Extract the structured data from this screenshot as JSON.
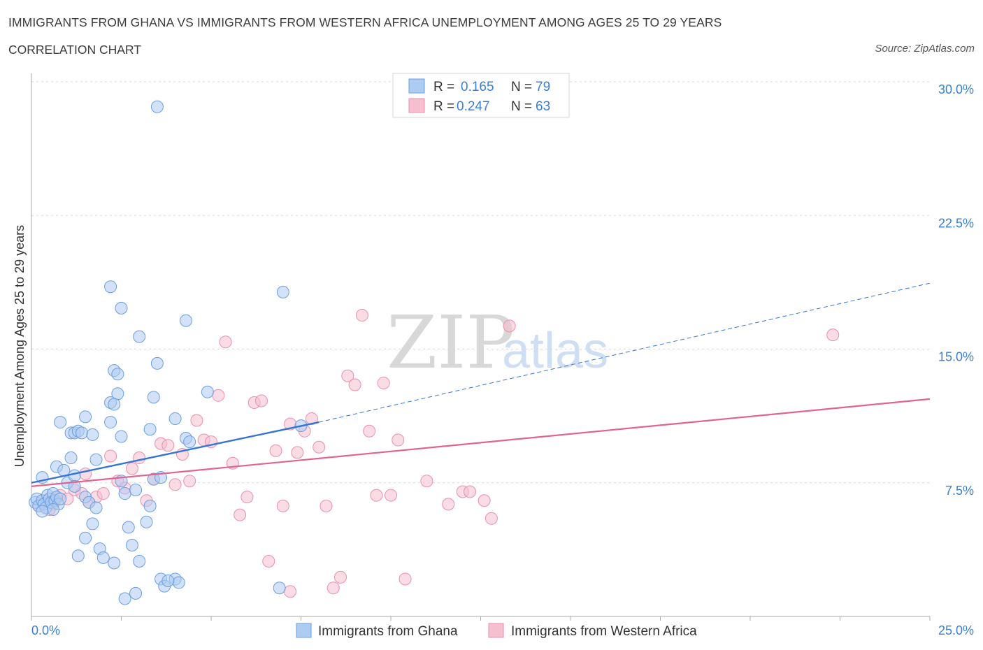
{
  "title": "IMMIGRANTS FROM GHANA VS IMMIGRANTS FROM WESTERN AFRICA UNEMPLOYMENT AMONG AGES 25 TO 29 YEARS",
  "subtitle": "CORRELATION CHART",
  "source": "Source: ZipAtlas.com",
  "watermark": {
    "zip": "ZIP",
    "atlas": "atlas"
  },
  "legend": {
    "rows": [
      {
        "r_label": "R =",
        "r_value": "0.165",
        "n_label": "N =",
        "n_value": "79"
      },
      {
        "r_label": "R =",
        "r_value": "0.247",
        "n_label": "N =",
        "n_value": "63"
      }
    ]
  },
  "bottom_legend": [
    "Immigrants from Ghana",
    "Immigrants from Western Africa"
  ],
  "colors": {
    "ghana_fill": "#aecbf2",
    "ghana_stroke": "#6a9fe0",
    "ghana_line": "#3474d4",
    "wa_fill": "#f6bfd0",
    "wa_stroke": "#ea8fae",
    "wa_line": "#e0648f",
    "tick_text": "#3b7fd4",
    "grid": "#d9d9d9"
  },
  "chart_data": {
    "type": "scatter",
    "title": "IMMIGRANTS FROM GHANA VS IMMIGRANTS FROM WESTERN AFRICA UNEMPLOYMENT AMONG AGES 25 TO 29 YEARS",
    "xlabel": "",
    "ylabel": "Unemployment Among Ages 25 to 29 years",
    "xlim": [
      0,
      25
    ],
    "ylim": [
      0,
      30
    ],
    "x_tick_labels": [
      "0.0%",
      "25.0%"
    ],
    "y_ticks": [
      7.5,
      15.0,
      22.5,
      30.0
    ],
    "y_tick_labels": [
      "7.5%",
      "15.0%",
      "22.5%",
      "30.0%"
    ],
    "grid": "horizontal dashed",
    "series": [
      {
        "name": "Immigrants from Ghana",
        "R": 0.165,
        "N": 79,
        "trend": {
          "x0": 0.0,
          "y0": 7.5,
          "x1": 8.0,
          "y1": 10.9,
          "dash_to_x": 25.0,
          "dash_to_y": 18.7
        },
        "points": [
          [
            0.1,
            6.4
          ],
          [
            0.15,
            6.6
          ],
          [
            0.2,
            6.2
          ],
          [
            0.3,
            6.5
          ],
          [
            0.35,
            6.3
          ],
          [
            0.4,
            6.1
          ],
          [
            0.45,
            6.8
          ],
          [
            0.5,
            6.6
          ],
          [
            0.55,
            6.4
          ],
          [
            0.6,
            6.9
          ],
          [
            0.65,
            6.5
          ],
          [
            0.7,
            6.7
          ],
          [
            0.75,
            6.3
          ],
          [
            0.8,
            6.6
          ],
          [
            0.3,
            7.8
          ],
          [
            0.7,
            8.4
          ],
          [
            0.9,
            8.2
          ],
          [
            1.0,
            7.5
          ],
          [
            1.1,
            8.9
          ],
          [
            1.2,
            7.9
          ],
          [
            0.8,
            10.9
          ],
          [
            1.1,
            10.3
          ],
          [
            1.2,
            10.3
          ],
          [
            1.3,
            10.4
          ],
          [
            1.4,
            10.3
          ],
          [
            1.5,
            11.2
          ],
          [
            1.7,
            10.2
          ],
          [
            1.8,
            8.8
          ],
          [
            1.2,
            7.3
          ],
          [
            1.5,
            6.7
          ],
          [
            1.6,
            6.4
          ],
          [
            1.8,
            6.1
          ],
          [
            0.6,
            6.0
          ],
          [
            0.3,
            5.9
          ],
          [
            2.2,
            12.0
          ],
          [
            2.4,
            12.5
          ],
          [
            2.3,
            11.9
          ],
          [
            2.2,
            10.9
          ],
          [
            2.5,
            10.1
          ],
          [
            2.3,
            13.8
          ],
          [
            2.4,
            13.6
          ],
          [
            2.2,
            18.5
          ],
          [
            2.5,
            17.3
          ],
          [
            3.0,
            15.7
          ],
          [
            2.5,
            7.6
          ],
          [
            2.6,
            6.9
          ],
          [
            2.9,
            7.1
          ],
          [
            3.2,
            5.3
          ],
          [
            2.8,
            4.0
          ],
          [
            2.7,
            5.0
          ],
          [
            1.7,
            5.2
          ],
          [
            1.5,
            4.4
          ],
          [
            1.9,
            3.8
          ],
          [
            2.0,
            3.3
          ],
          [
            2.3,
            3.0
          ],
          [
            1.3,
            3.4
          ],
          [
            3.0,
            3.1
          ],
          [
            2.6,
            1.0
          ],
          [
            2.9,
            1.3
          ],
          [
            3.4,
            12.3
          ],
          [
            3.5,
            14.2
          ],
          [
            3.3,
            10.5
          ],
          [
            3.4,
            7.7
          ],
          [
            3.6,
            7.8
          ],
          [
            3.3,
            6.2
          ],
          [
            4.0,
            11.1
          ],
          [
            4.3,
            10.0
          ],
          [
            4.4,
            9.8
          ],
          [
            4.3,
            16.6
          ],
          [
            4.9,
            12.6
          ],
          [
            3.5,
            28.6
          ],
          [
            7.0,
            18.2
          ],
          [
            7.5,
            10.7
          ],
          [
            6.9,
            1.6
          ],
          [
            3.6,
            2.1
          ],
          [
            3.7,
            1.7
          ],
          [
            4.0,
            2.1
          ],
          [
            4.1,
            1.9
          ],
          [
            3.8,
            2.0
          ]
        ]
      },
      {
        "name": "Immigrants from Western Africa",
        "R": 0.247,
        "N": 63,
        "trend": {
          "x0": 0.0,
          "y0": 7.3,
          "x1": 25.0,
          "y1": 12.2
        },
        "points": [
          [
            0.2,
            6.2
          ],
          [
            0.4,
            6.5
          ],
          [
            0.6,
            6.3
          ],
          [
            0.8,
            6.8
          ],
          [
            1.0,
            6.6
          ],
          [
            1.2,
            7.1
          ],
          [
            1.4,
            6.9
          ],
          [
            1.6,
            6.4
          ],
          [
            1.8,
            6.7
          ],
          [
            2.0,
            6.9
          ],
          [
            2.2,
            9.0
          ],
          [
            2.4,
            7.6
          ],
          [
            2.6,
            7.2
          ],
          [
            2.8,
            8.3
          ],
          [
            3.0,
            8.9
          ],
          [
            3.2,
            6.5
          ],
          [
            3.4,
            7.7
          ],
          [
            3.6,
            9.7
          ],
          [
            3.8,
            9.6
          ],
          [
            4.0,
            7.4
          ],
          [
            4.2,
            9.1
          ],
          [
            4.4,
            7.6
          ],
          [
            4.6,
            11.0
          ],
          [
            4.8,
            9.9
          ],
          [
            5.0,
            9.8
          ],
          [
            5.2,
            12.4
          ],
          [
            5.4,
            15.4
          ],
          [
            5.6,
            8.6
          ],
          [
            5.8,
            5.7
          ],
          [
            6.0,
            6.7
          ],
          [
            6.2,
            12.0
          ],
          [
            6.4,
            12.1
          ],
          [
            6.6,
            3.1
          ],
          [
            6.8,
            9.3
          ],
          [
            7.0,
            6.2
          ],
          [
            7.2,
            10.8
          ],
          [
            7.4,
            9.2
          ],
          [
            7.6,
            10.4
          ],
          [
            7.8,
            11.1
          ],
          [
            8.0,
            9.5
          ],
          [
            8.2,
            6.2
          ],
          [
            8.4,
            1.6
          ],
          [
            8.6,
            2.2
          ],
          [
            8.8,
            13.5
          ],
          [
            9.0,
            13.0
          ],
          [
            9.2,
            16.9
          ],
          [
            9.4,
            10.4
          ],
          [
            9.6,
            6.8
          ],
          [
            9.8,
            13.1
          ],
          [
            10.0,
            6.8
          ],
          [
            10.2,
            9.9
          ],
          [
            10.4,
            2.1
          ],
          [
            11.0,
            7.6
          ],
          [
            11.6,
            6.3
          ],
          [
            12.0,
            7.0
          ],
          [
            12.2,
            7.0
          ],
          [
            12.6,
            6.5
          ],
          [
            12.8,
            5.5
          ],
          [
            13.3,
            16.3
          ],
          [
            22.3,
            15.8
          ],
          [
            0.5,
            6.0
          ],
          [
            1.5,
            8.0
          ],
          [
            7.2,
            1.4
          ]
        ]
      }
    ]
  }
}
